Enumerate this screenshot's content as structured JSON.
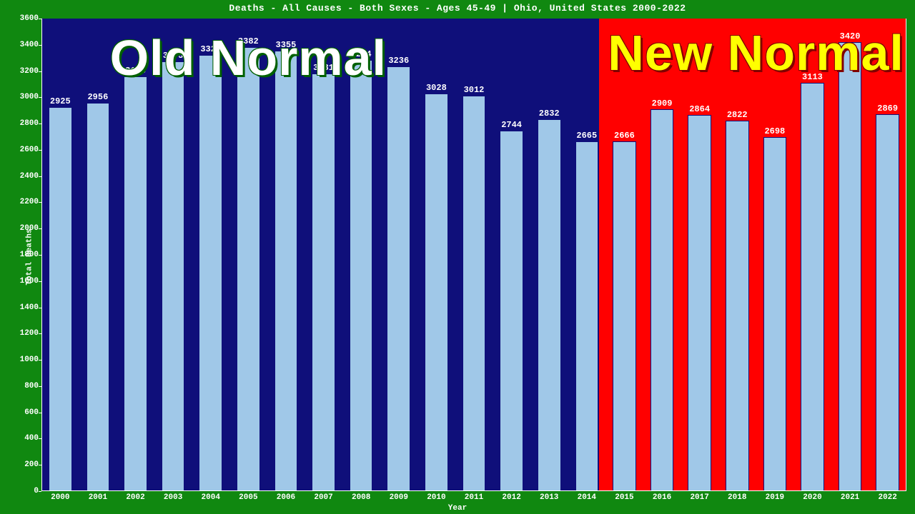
{
  "chart": {
    "type": "bar",
    "title": "Deaths - All Causes - Both Sexes - Ages 45-49 | Ohio, United States 2000-2022",
    "xlabel": "Year",
    "ylabel": "Total Deaths",
    "title_fontsize": 13,
    "label_fontsize": 11,
    "tick_fontsize": 11,
    "value_label_fontsize": 12,
    "overlay_fontsize": 70,
    "background_color": "#108810",
    "plot_background_color": "#0f0f7a",
    "new_region_color": "#ff0000",
    "bar_color": "#a0c8e8",
    "bar_border_color": "#0f0f7a",
    "axis_color": "#ffffff",
    "text_color": "#ffffff",
    "ylim": [
      0,
      3600
    ],
    "ytick_step": 200,
    "yticks": [
      0,
      200,
      400,
      600,
      800,
      1000,
      1200,
      1400,
      1600,
      1800,
      2000,
      2200,
      2400,
      2600,
      2800,
      3000,
      3200,
      3400,
      3600
    ],
    "bar_width": 0.62,
    "categories": [
      "2000",
      "2001",
      "2002",
      "2003",
      "2004",
      "2005",
      "2006",
      "2007",
      "2008",
      "2009",
      "2010",
      "2011",
      "2012",
      "2013",
      "2014",
      "2015",
      "2016",
      "2017",
      "2018",
      "2019",
      "2020",
      "2021",
      "2022"
    ],
    "values": [
      2925,
      2956,
      3158,
      3275,
      3324,
      3382,
      3355,
      3181,
      3284,
      3236,
      3028,
      3012,
      2744,
      2832,
      2665,
      2666,
      2909,
      2864,
      2822,
      2698,
      3113,
      3420,
      2869
    ],
    "value_labels": [
      "2925",
      "2956",
      "3158",
      "3275",
      "3324",
      "3382",
      "3355",
      "3181",
      "3284",
      "3236",
      "3028",
      "3012",
      "2744",
      "2832",
      "2665",
      "2666",
      "2909",
      "2864",
      "2822",
      "2698",
      "3113",
      "3420",
      "2869"
    ],
    "new_region_start_index": 15,
    "overlays": {
      "old": {
        "text": "Old Normal",
        "color": "#ffffff",
        "shadow": "#006000",
        "center_index": 5,
        "y_value": 3300
      },
      "new": {
        "text": "New Normal",
        "color": "#ffff00",
        "shadow": "#800000",
        "center_index": 18.5,
        "y_value": 3340
      }
    }
  }
}
